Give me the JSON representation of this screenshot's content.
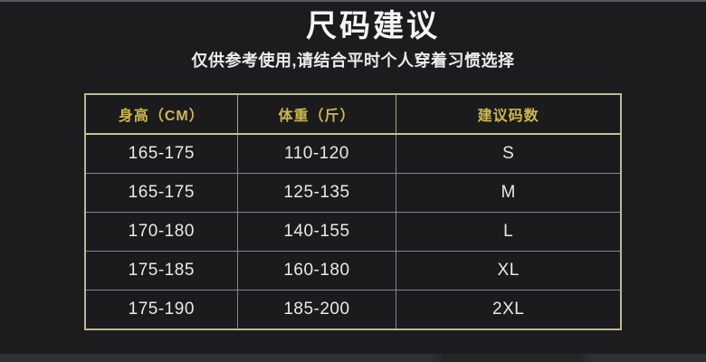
{
  "chart_data": {
    "type": "table",
    "title": "尺码建议",
    "subtitle": "仅供参考使用,请结合平时个人穿着习惯选择",
    "columns": [
      "身高（CM）",
      "体重（斤）",
      "建议码数"
    ],
    "rows": [
      [
        "165-175",
        "110-120",
        "S"
      ],
      [
        "165-175",
        "125-135",
        "M"
      ],
      [
        "170-180",
        "140-155",
        "L"
      ],
      [
        "175-185",
        "160-180",
        "XL"
      ],
      [
        "175-190",
        "185-200",
        "2XL"
      ]
    ]
  },
  "colors": {
    "background": "#1c1c1e",
    "title_text": "#f4f4f4",
    "header_text_gold": "#ccb84e",
    "body_text": "#e9e9e9",
    "table_outer_border": "#bcb894",
    "table_grid_line": "#84848a",
    "top_edge_line": "#55585c",
    "bottom_strip": "#2e3134"
  }
}
